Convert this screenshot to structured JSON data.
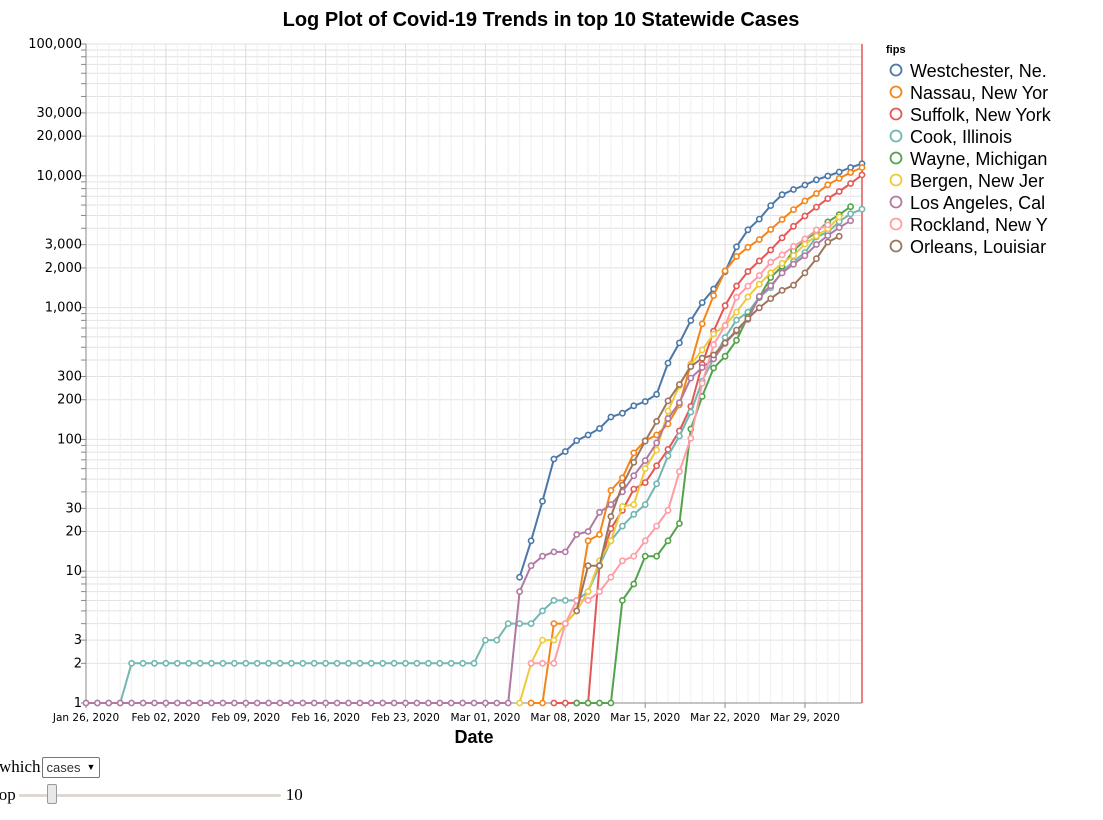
{
  "controls": {
    "which_label": "which",
    "which_value": "cases",
    "top_label": "top",
    "top_value": "10"
  },
  "chart_data": {
    "type": "line",
    "title": "Log Plot of Covid-19 Trends in top 10 Statewide Cases",
    "xlabel": "Date",
    "ylabel": "",
    "yscale": "log",
    "ylim": [
      1,
      100000
    ],
    "xlim": [
      "2020-01-26",
      "2020-04-03"
    ],
    "grid": true,
    "legend_title": "fips",
    "legend_placement": "right",
    "x_ticks": [
      "Jan 26, 2020",
      "Feb 02, 2020",
      "Feb 09, 2020",
      "Feb 16, 2020",
      "Feb 23, 2020",
      "Mar 01, 2020",
      "Mar 08, 2020",
      "Mar 15, 2020",
      "Mar 22, 2020",
      "Mar 29, 2020"
    ],
    "y_ticks": [
      "1",
      "2",
      "3",
      "10",
      "20",
      "30",
      "100",
      "200",
      "300",
      "1,000",
      "2,000",
      "3,000",
      "10,000",
      "20,000",
      "30,000",
      "100,000"
    ],
    "series": [
      {
        "name": "Westchester, Ne.",
        "color": "#4c78a8",
        "start": "2020-03-04",
        "values": [
          9,
          17,
          34,
          71,
          81,
          98,
          108,
          121,
          148,
          158,
          180,
          194,
          220,
          379,
          540,
          798,
          1091,
          1385,
          1873,
          2894,
          3891,
          4691,
          5944,
          7187,
          7875,
          8519,
          9326,
          9967,
          10683,
          11566,
          12351
        ]
      },
      {
        "name": "Nassau, New Yor",
        "color": "#f58518",
        "start": "2020-03-05",
        "values": [
          1,
          1,
          4,
          4,
          5,
          17,
          19,
          41,
          51,
          79,
          98,
          108,
          131,
          183,
          372,
          754,
          1234,
          1900,
          2442,
          2869,
          3285,
          3914,
          4657,
          5537,
          6445,
          7344,
          8544,
          9554,
          10587,
          11557
        ]
      },
      {
        "name": "Suffolk, New York",
        "color": "#e45756",
        "start": "2020-03-07",
        "values": [
          1,
          1,
          1,
          1,
          11,
          21,
          29,
          42,
          47,
          63,
          84,
          116,
          178,
          371,
          662,
          1034,
          1458,
          1880,
          2260,
          2735,
          3385,
          4138,
          4955,
          5791,
          6713,
          7605,
          8746,
          10154
        ]
      },
      {
        "name": "Cook, Illinois",
        "color": "#72b7b2",
        "start": "2020-01-24",
        "values": [
          1,
          1,
          1,
          1,
          1,
          1,
          2,
          2,
          2,
          2,
          2,
          2,
          2,
          2,
          2,
          2,
          2,
          2,
          2,
          2,
          2,
          2,
          2,
          2,
          2,
          2,
          2,
          2,
          2,
          2,
          2,
          2,
          2,
          2,
          2,
          2,
          2,
          3,
          3,
          4,
          4,
          4,
          5,
          6,
          6,
          6,
          7,
          11,
          17,
          22,
          27,
          32,
          46,
          75,
          106,
          161,
          277,
          410,
          593,
          805,
          922,
          1194,
          1418,
          1879,
          2239,
          2613,
          3445,
          3727,
          4496,
          5152,
          5575,
          6111
        ]
      },
      {
        "name": "Wayne, Michigan",
        "color": "#54a24b",
        "start": "2020-03-09",
        "values": [
          1,
          1,
          1,
          1,
          6,
          8,
          13,
          13,
          17,
          23,
          120,
          212,
          348,
          427,
          565,
          852,
          1196,
          1692,
          2059,
          2704,
          3252,
          3735,
          4470,
          5069,
          5830
        ]
      },
      {
        "name": "Bergen, New Jer",
        "color": "#eeca3b",
        "start": "2020-03-04",
        "values": [
          1,
          2,
          3,
          3,
          4,
          5,
          7,
          12,
          17,
          31,
          32,
          60,
          83,
          164,
          255,
          369,
          478,
          631,
          733,
          924,
          1206,
          1505,
          1838,
          2169,
          2482,
          3037,
          3494,
          3970,
          4866
        ]
      },
      {
        "name": "Los Angeles, Cal",
        "color": "#b279a2",
        "start": "2020-01-26",
        "values": [
          1,
          1,
          1,
          1,
          1,
          1,
          1,
          1,
          1,
          1,
          1,
          1,
          1,
          1,
          1,
          1,
          1,
          1,
          1,
          1,
          1,
          1,
          1,
          1,
          1,
          1,
          1,
          1,
          1,
          1,
          1,
          1,
          1,
          1,
          1,
          1,
          1,
          1,
          7,
          11,
          13,
          14,
          14,
          19,
          20,
          28,
          32,
          40,
          53,
          69,
          94,
          144,
          190,
          292,
          351,
          409,
          536,
          662,
          812,
          1216,
          1465,
          1829,
          2136,
          2474,
          3011,
          3518,
          4045,
          4566
        ]
      },
      {
        "name": "Rockland, New Y",
        "color": "#ff9da6",
        "start": "2020-03-05",
        "values": [
          2,
          2,
          2,
          4,
          6,
          6,
          7,
          9,
          12,
          13,
          17,
          22,
          29,
          57,
          102,
          267,
          523,
          731,
          1197,
          1457,
          1753,
          2209,
          2510,
          2911,
          3321,
          3885,
          4244
        ]
      },
      {
        "name": "Orleans, Louisiar",
        "color": "#9d755d",
        "start": "2020-03-09",
        "values": [
          5,
          11,
          11,
          26,
          45,
          67,
          97,
          137,
          196,
          261,
          357,
          413,
          437,
          539,
          675,
          827,
          997,
          1170,
          1350,
          1480,
          1834,
          2350,
          3140,
          3476
        ]
      }
    ]
  }
}
